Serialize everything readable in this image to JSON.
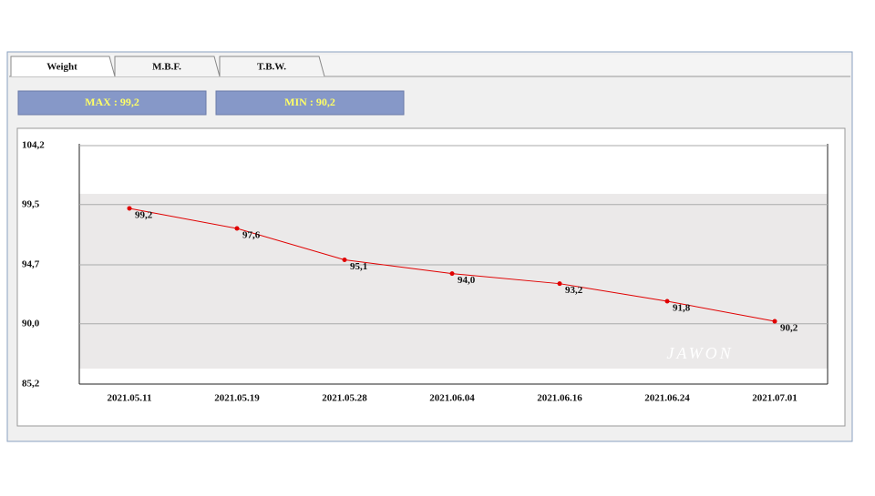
{
  "tabs": [
    "Weight",
    "M.B.F.",
    "T.B.W."
  ],
  "max_label": "MAX : 99,2",
  "min_label": "MIN : 90,2",
  "watermark": "JAWON",
  "chart_data": {
    "type": "line",
    "categories": [
      "2021.05.11",
      "2021.05.19",
      "2021.05.28",
      "2021.06.04",
      "2021.06.16",
      "2021.06.24",
      "2021.07.01"
    ],
    "values": [
      99.2,
      97.6,
      95.1,
      94.0,
      93.2,
      91.8,
      90.2
    ],
    "value_labels": [
      "99,2",
      "97,6",
      "95,1",
      "94,0",
      "93,2",
      "91,8",
      "90,2"
    ],
    "color": "#e00000",
    "ylim": [
      85.2,
      104.2
    ],
    "yticks": [
      {
        "value": 85.2,
        "label": "85,2"
      },
      {
        "value": 90.0,
        "label": "90,0"
      },
      {
        "value": 94.7,
        "label": "94,7"
      },
      {
        "value": 99.5,
        "label": "99,5"
      },
      {
        "value": 104.2,
        "label": "104,2"
      }
    ],
    "grid": true
  }
}
